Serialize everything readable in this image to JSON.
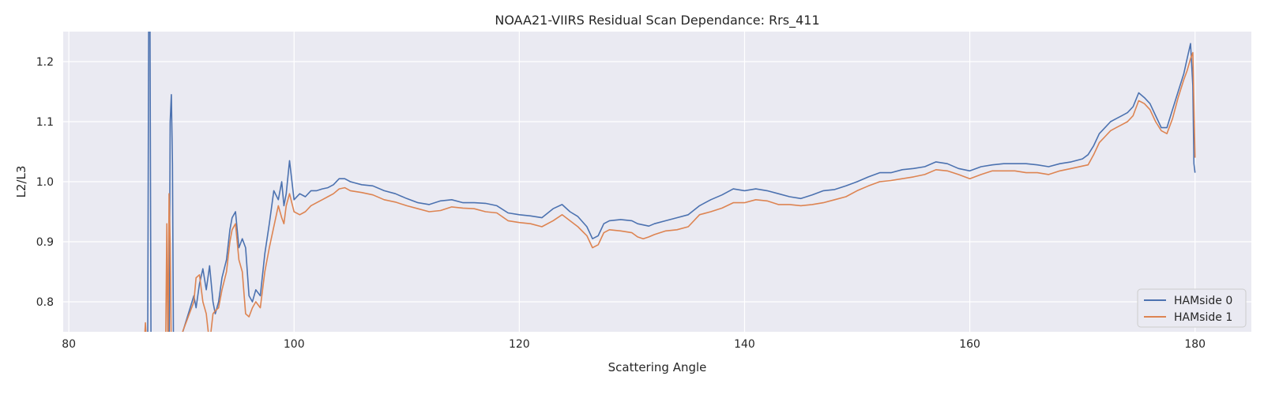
{
  "chart_data": {
    "type": "line",
    "title": "NOAA21-VIIRS Residual Scan Dependance: Rrs_411",
    "xlabel": "Scattering Angle",
    "ylabel": "L2/L3",
    "xlim": [
      79.5,
      185
    ],
    "ylim": [
      0.75,
      1.25
    ],
    "xticks": [
      80,
      100,
      120,
      140,
      160,
      180
    ],
    "yticks": [
      0.8,
      0.9,
      1.0,
      1.1,
      1.2
    ],
    "xtick_labels": [
      "80",
      "100",
      "120",
      "140",
      "160",
      "180"
    ],
    "ytick_labels": [
      "0.8",
      "0.9",
      "1.0",
      "1.1",
      "1.2"
    ],
    "grid": true,
    "background": "#eaeaf2",
    "legend_position": "lower-right",
    "series": [
      {
        "name": "HAMside 0",
        "color": "#4c72b0",
        "x": [
          87.0,
          87.1,
          87.2,
          87.3,
          88.9,
          89.0,
          89.1,
          89.2,
          89.3,
          91.1,
          91.3,
          91.6,
          91.9,
          92.2,
          92.5,
          92.8,
          93.0,
          93.3,
          93.6,
          94.0,
          94.3,
          94.5,
          94.8,
          95.1,
          95.4,
          95.7,
          96.0,
          96.3,
          96.6,
          97.0,
          97.4,
          97.8,
          98.2,
          98.6,
          98.9,
          99.1,
          99.3,
          99.6,
          100.0,
          100.5,
          101.0,
          101.5,
          102.0,
          102.5,
          103.0,
          103.5,
          104.0,
          104.5,
          105.0,
          106.0,
          107.0,
          108.0,
          109.0,
          110.0,
          111.0,
          112.0,
          113.0,
          114.0,
          115.0,
          116.0,
          117.0,
          118.0,
          119.0,
          120.0,
          121.0,
          122.0,
          123.0,
          123.8,
          124.5,
          125.2,
          126.0,
          126.5,
          127.0,
          127.5,
          128.0,
          129.0,
          130.0,
          130.5,
          131.0,
          131.5,
          132.0,
          133.0,
          134.0,
          135.0,
          136.0,
          137.0,
          138.0,
          139.0,
          140.0,
          141.0,
          142.0,
          143.0,
          144.0,
          145.0,
          146.0,
          147.0,
          148.0,
          149.0,
          150.0,
          151.0,
          152.0,
          153.0,
          154.0,
          155.0,
          156.0,
          157.0,
          158.0,
          159.0,
          160.0,
          161.0,
          162.0,
          163.0,
          164.0,
          165.0,
          166.0,
          167.0,
          168.0,
          169.0,
          170.0,
          170.5,
          171.0,
          171.5,
          172.0,
          172.5,
          173.0,
          173.5,
          174.0,
          174.5,
          175.0,
          175.5,
          176.0,
          176.5,
          177.0,
          177.5,
          178.0,
          178.5,
          179.0,
          179.3,
          179.6,
          179.8,
          179.9,
          180.0
        ],
        "y": [
          0.7,
          1.3,
          1.3,
          0.7,
          0.7,
          1.1,
          1.145,
          1.03,
          0.7,
          0.81,
          0.79,
          0.83,
          0.855,
          0.82,
          0.86,
          0.8,
          0.78,
          0.8,
          0.84,
          0.87,
          0.92,
          0.94,
          0.95,
          0.89,
          0.905,
          0.89,
          0.81,
          0.8,
          0.82,
          0.81,
          0.88,
          0.93,
          0.985,
          0.97,
          1.0,
          0.96,
          0.98,
          1.035,
          0.97,
          0.98,
          0.975,
          0.985,
          0.985,
          0.988,
          0.99,
          0.995,
          1.005,
          1.005,
          1.0,
          0.995,
          0.993,
          0.985,
          0.98,
          0.972,
          0.965,
          0.962,
          0.968,
          0.97,
          0.965,
          0.965,
          0.964,
          0.96,
          0.948,
          0.945,
          0.943,
          0.94,
          0.955,
          0.962,
          0.95,
          0.942,
          0.925,
          0.905,
          0.91,
          0.93,
          0.935,
          0.937,
          0.935,
          0.93,
          0.928,
          0.926,
          0.93,
          0.935,
          0.94,
          0.945,
          0.96,
          0.97,
          0.978,
          0.988,
          0.985,
          0.988,
          0.985,
          0.98,
          0.975,
          0.972,
          0.978,
          0.985,
          0.987,
          0.993,
          1.0,
          1.008,
          1.015,
          1.015,
          1.02,
          1.022,
          1.025,
          1.033,
          1.03,
          1.022,
          1.018,
          1.025,
          1.028,
          1.03,
          1.03,
          1.03,
          1.028,
          1.025,
          1.03,
          1.033,
          1.038,
          1.045,
          1.06,
          1.08,
          1.09,
          1.1,
          1.105,
          1.11,
          1.115,
          1.125,
          1.148,
          1.14,
          1.13,
          1.11,
          1.09,
          1.09,
          1.12,
          1.15,
          1.18,
          1.205,
          1.23,
          1.16,
          1.03,
          1.015
        ]
      },
      {
        "name": "HAMside 1",
        "color": "#dd8452",
        "x": [
          86.7,
          86.8,
          86.9,
          88.6,
          88.7,
          88.8,
          88.9,
          89.0,
          89.1,
          91.1,
          91.3,
          91.6,
          91.9,
          92.2,
          92.5,
          92.8,
          93.0,
          93.3,
          93.6,
          94.0,
          94.3,
          94.5,
          94.8,
          95.1,
          95.4,
          95.7,
          96.0,
          96.3,
          96.6,
          97.0,
          97.4,
          97.8,
          98.2,
          98.6,
          98.9,
          99.1,
          99.3,
          99.6,
          100.0,
          100.5,
          101.0,
          101.5,
          102.0,
          102.5,
          103.0,
          103.5,
          104.0,
          104.5,
          105.0,
          106.0,
          107.0,
          108.0,
          109.0,
          110.0,
          111.0,
          112.0,
          113.0,
          114.0,
          115.0,
          116.0,
          117.0,
          118.0,
          119.0,
          120.0,
          121.0,
          122.0,
          123.0,
          123.8,
          124.5,
          125.2,
          126.0,
          126.5,
          127.0,
          127.5,
          128.0,
          129.0,
          130.0,
          130.5,
          131.0,
          131.5,
          132.0,
          133.0,
          134.0,
          135.0,
          136.0,
          137.0,
          138.0,
          139.0,
          140.0,
          141.0,
          142.0,
          143.0,
          144.0,
          145.0,
          146.0,
          147.0,
          148.0,
          149.0,
          150.0,
          151.0,
          152.0,
          153.0,
          154.0,
          155.0,
          156.0,
          157.0,
          158.0,
          159.0,
          160.0,
          161.0,
          162.0,
          163.0,
          164.0,
          165.0,
          166.0,
          167.0,
          168.0,
          169.0,
          170.0,
          170.5,
          171.0,
          171.5,
          172.0,
          172.5,
          173.0,
          173.5,
          174.0,
          174.5,
          175.0,
          175.5,
          176.0,
          176.5,
          177.0,
          177.5,
          178.0,
          178.5,
          179.0,
          179.3,
          179.6,
          179.8,
          179.9,
          180.0
        ],
        "y": [
          0.73,
          0.765,
          0.73,
          0.73,
          0.93,
          0.7,
          0.98,
          0.9,
          0.7,
          0.8,
          0.84,
          0.845,
          0.8,
          0.78,
          0.73,
          0.78,
          0.785,
          0.79,
          0.82,
          0.85,
          0.9,
          0.92,
          0.93,
          0.87,
          0.85,
          0.78,
          0.775,
          0.79,
          0.8,
          0.79,
          0.85,
          0.89,
          0.925,
          0.96,
          0.94,
          0.93,
          0.96,
          0.98,
          0.95,
          0.945,
          0.95,
          0.96,
          0.965,
          0.97,
          0.975,
          0.98,
          0.988,
          0.99,
          0.985,
          0.982,
          0.978,
          0.97,
          0.966,
          0.96,
          0.955,
          0.95,
          0.952,
          0.958,
          0.956,
          0.955,
          0.95,
          0.948,
          0.935,
          0.932,
          0.93,
          0.925,
          0.935,
          0.945,
          0.935,
          0.925,
          0.91,
          0.89,
          0.895,
          0.915,
          0.92,
          0.918,
          0.915,
          0.908,
          0.905,
          0.908,
          0.912,
          0.918,
          0.92,
          0.925,
          0.945,
          0.95,
          0.956,
          0.965,
          0.965,
          0.97,
          0.968,
          0.962,
          0.962,
          0.96,
          0.962,
          0.965,
          0.97,
          0.975,
          0.985,
          0.993,
          1.0,
          1.002,
          1.005,
          1.008,
          1.012,
          1.02,
          1.018,
          1.012,
          1.005,
          1.012,
          1.018,
          1.018,
          1.018,
          1.015,
          1.015,
          1.012,
          1.018,
          1.022,
          1.026,
          1.028,
          1.045,
          1.065,
          1.075,
          1.085,
          1.09,
          1.095,
          1.1,
          1.11,
          1.135,
          1.13,
          1.12,
          1.1,
          1.085,
          1.08,
          1.105,
          1.14,
          1.17,
          1.185,
          1.205,
          1.215,
          1.13,
          1.04
        ]
      }
    ]
  }
}
